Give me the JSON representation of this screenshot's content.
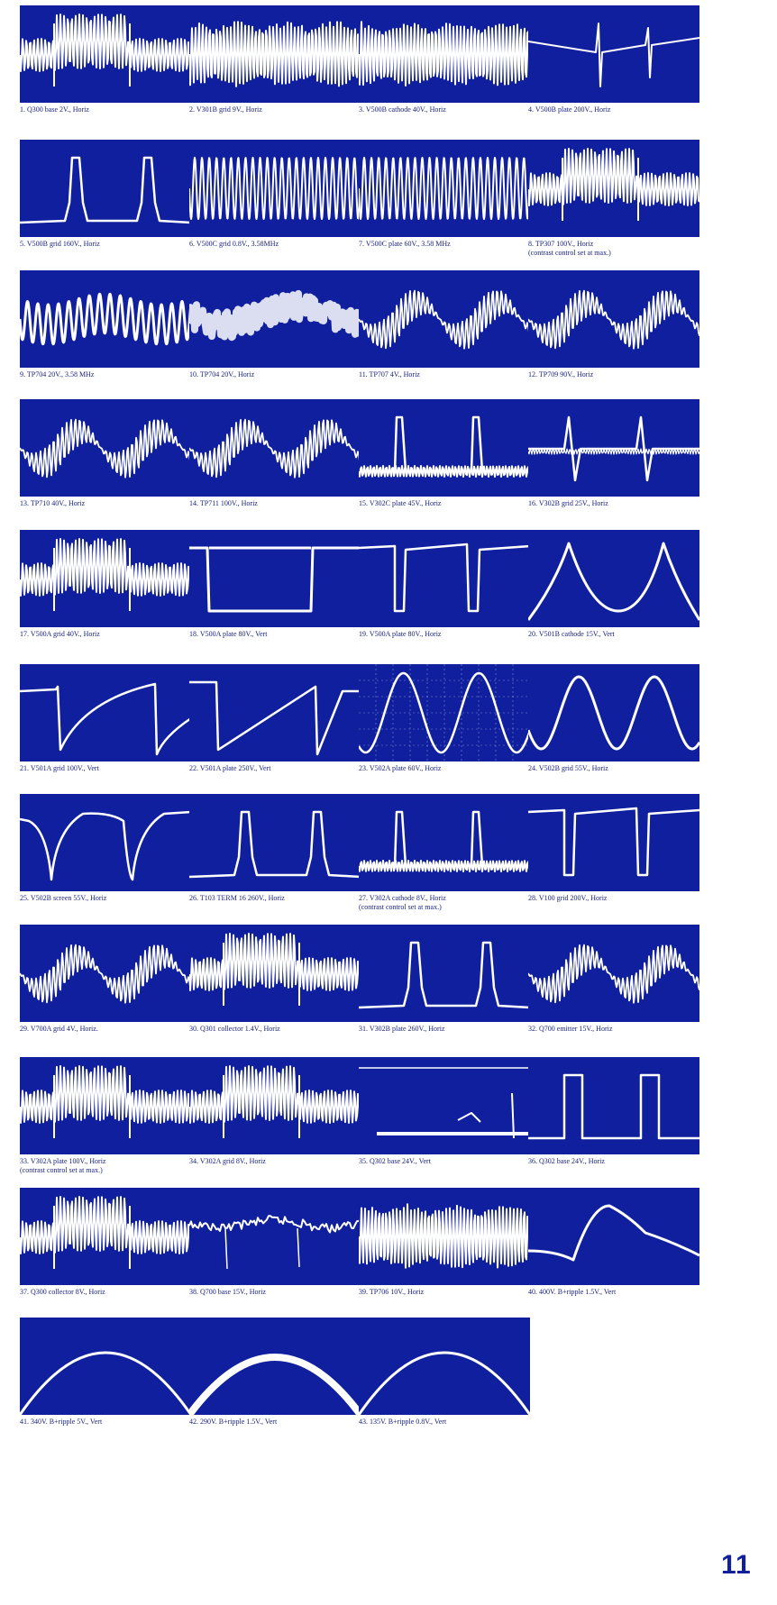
{
  "page_number": "11",
  "colors": {
    "screen": "#0f1f9e",
    "trace": "#ffffff",
    "caption": "#1a237e"
  },
  "waveforms": [
    {
      "n": "1",
      "label": "1. Q300 base 2V., Horiz",
      "kind": "burst-block"
    },
    {
      "n": "2",
      "label": "2. V301B grid 9V., Horiz",
      "kind": "dense-burst"
    },
    {
      "n": "3",
      "label": "3. V500B cathode 40V., Horiz",
      "kind": "dense-burst"
    },
    {
      "n": "4",
      "label": "4. V500B plate 200V., Horiz",
      "kind": "spike"
    },
    {
      "n": "5",
      "label": "5. V500B grid 160V., Horiz",
      "kind": "pulse"
    },
    {
      "n": "6",
      "label": "6. V500C grid 0.8V., 3.58MHz",
      "kind": "sine-dense"
    },
    {
      "n": "7",
      "label": "7. V500C plate 60V., 3.58 MHz",
      "kind": "sine-dense"
    },
    {
      "n": "8",
      "label": "8. TP307 100V., Horiz",
      "label2": "(contrast control set at max.)",
      "kind": "burst-block"
    },
    {
      "n": "9",
      "label": "9. TP704 20V., 3.58 MHz",
      "kind": "sine-medium"
    },
    {
      "n": "10",
      "label": "10. TP704 20V., Horiz",
      "kind": "band"
    },
    {
      "n": "11",
      "label": "11. TP707 4V., Horiz",
      "kind": "noisy"
    },
    {
      "n": "12",
      "label": "12. TP709 90V., Horiz",
      "kind": "noisy"
    },
    {
      "n": "13",
      "label": "13. TP710 40V., Horiz",
      "kind": "noisy"
    },
    {
      "n": "14",
      "label": "14. TP711 100V., Horiz",
      "kind": "noisy"
    },
    {
      "n": "15",
      "label": "15. V302C plate 45V., Horiz",
      "kind": "pulse-ripple"
    },
    {
      "n": "16",
      "label": "16. V302B grid 25V., Horiz",
      "kind": "diff-pulse"
    },
    {
      "n": "17",
      "label": "17. V500A grid 40V., Horiz",
      "kind": "burst-block"
    },
    {
      "n": "18",
      "label": "18. V500A plate 80V., Vert",
      "kind": "square"
    },
    {
      "n": "19",
      "label": "19. V500A plate 80V., Horiz",
      "kind": "square-dip"
    },
    {
      "n": "20",
      "label": "20. V501B cathode 15V., Vert",
      "kind": "parabola"
    },
    {
      "n": "21",
      "label": "21. V501A grid 100V., Vert",
      "kind": "neg-spike"
    },
    {
      "n": "22",
      "label": "22. V501A plate 250V., Vert",
      "kind": "sawtooth"
    },
    {
      "n": "23",
      "label": "23. V502A plate 60V., Horiz",
      "kind": "sine-grid"
    },
    {
      "n": "24",
      "label": "24. V502B grid 55V., Horiz",
      "kind": "sine-big"
    },
    {
      "n": "25",
      "label": "25. V502B screen 55V., Horiz",
      "kind": "dip-curve"
    },
    {
      "n": "26",
      "label": "26. T103 TERM 16 260V., Horiz",
      "kind": "pulse"
    },
    {
      "n": "27",
      "label": "27. V302A cathode 8V., Horiz",
      "label2": "(contrast control set at max.)",
      "kind": "pulse-ripple"
    },
    {
      "n": "28",
      "label": "28. V100 grid 200V., Horiz",
      "kind": "square-dip"
    },
    {
      "n": "29",
      "label": "29. V700A grid 4V., Horiz.",
      "kind": "noisy"
    },
    {
      "n": "30",
      "label": "30. Q301 collector 1.4V., Horiz",
      "kind": "burst-block"
    },
    {
      "n": "31",
      "label": "31. V302B plate 260V., Horiz",
      "kind": "pulse"
    },
    {
      "n": "32",
      "label": "32. Q700 emitter 15V., Horiz",
      "kind": "noisy"
    },
    {
      "n": "33",
      "label": "33. V302A plate 100V., Horiz",
      "label2": "(contrast control set at max.)",
      "kind": "burst-block"
    },
    {
      "n": "34",
      "label": "34. V302A grid 8V., Horiz",
      "kind": "burst-block"
    },
    {
      "n": "35",
      "label": "35. Q302 base 24V., Vert",
      "kind": "flat-blob"
    },
    {
      "n": "36",
      "label": "36. Q302 base 24V., Horiz",
      "kind": "pulse-square"
    },
    {
      "n": "37",
      "label": "37. Q300 collector 8V., Horiz",
      "kind": "burst-block"
    },
    {
      "n": "38",
      "label": "38. Q700 base 15V., Horiz",
      "kind": "noisy-flat"
    },
    {
      "n": "39",
      "label": "39. TP706 10V., Horiz",
      "kind": "dense-burst"
    },
    {
      "n": "40",
      "label": "40. 400V. B+ripple 1.5V., Vert",
      "kind": "hump"
    },
    {
      "n": "41",
      "label": "41. 340V. B+ripple 5V., Vert",
      "kind": "arch"
    },
    {
      "n": "42",
      "label": "42. 290V. B+ripple 1.5V., Vert",
      "kind": "arch-thick"
    },
    {
      "n": "43",
      "label": "43. 135V. B+ripple 0.8V., Vert",
      "kind": "arch"
    }
  ]
}
